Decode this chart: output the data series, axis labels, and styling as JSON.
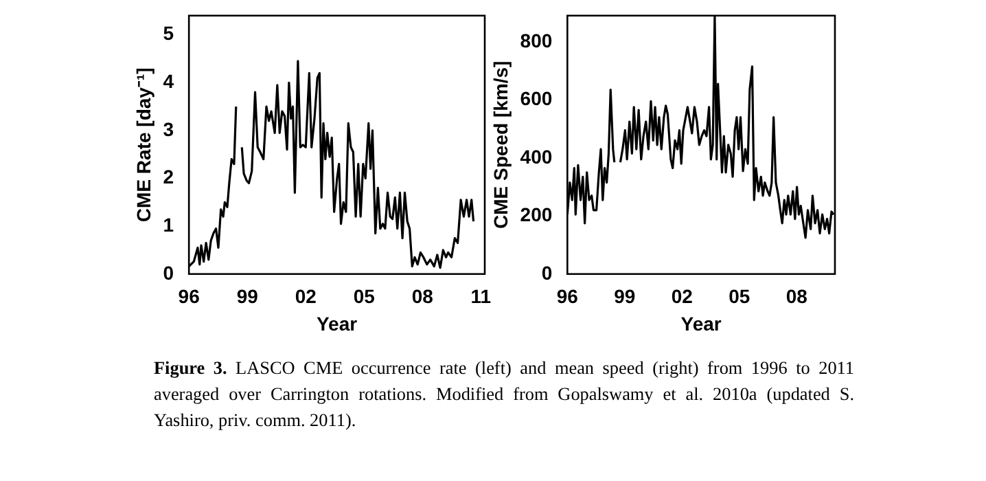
{
  "chart_data": [
    {
      "type": "line",
      "xlabel": "Year",
      "ylabel": "CME Rate [day⁻¹]",
      "grid": false,
      "legend": false,
      "marker": "none",
      "line_style": "solid",
      "xlim": [
        1996,
        2011.2
      ],
      "ylim": [
        0,
        5.4
      ],
      "xticks": [
        {
          "value": 1996,
          "label": "96"
        },
        {
          "value": 1999,
          "label": "99"
        },
        {
          "value": 2002,
          "label": "02"
        },
        {
          "value": 2005,
          "label": "05"
        },
        {
          "value": 2008,
          "label": "08"
        },
        {
          "value": 2011,
          "label": "11"
        }
      ],
      "yticks": [
        0,
        1,
        2,
        3,
        4,
        5
      ],
      "series": [
        {
          "color": "#000000",
          "x": [
            1996.0,
            1996.25,
            1996.45,
            1996.55,
            1996.63,
            1996.76,
            1996.88,
            1997.01,
            1997.13,
            1997.26,
            1997.39,
            1997.51,
            1997.64,
            1997.76,
            1997.84,
            1997.97,
            1998.07,
            1998.19,
            1998.32,
            1998.42,
            1998.5,
            1998.72,
            1998.82,
            1998.97,
            1999.08,
            1999.23,
            1999.4,
            1999.53,
            1999.66,
            1999.83,
            1999.98,
            2000.11,
            2000.23,
            2000.41,
            2000.54,
            2000.66,
            2000.79,
            2000.92,
            2001.04,
            2001.14,
            2001.24,
            2001.34,
            2001.44,
            2001.6,
            2001.72,
            2001.85,
            2002.0,
            2002.18,
            2002.3,
            2002.45,
            2002.6,
            2002.71,
            2002.81,
            2002.91,
            2003.01,
            2003.11,
            2003.23,
            2003.34,
            2003.46,
            2003.61,
            2003.71,
            2003.81,
            2003.94,
            2004.07,
            2004.19,
            2004.32,
            2004.44,
            2004.57,
            2004.7,
            2004.82,
            2004.95,
            2005.07,
            2005.23,
            2005.33,
            2005.43,
            2005.58,
            2005.71,
            2005.83,
            2005.96,
            2006.08,
            2006.21,
            2006.34,
            2006.46,
            2006.59,
            2006.71,
            2006.84,
            2006.97,
            2007.09,
            2007.22,
            2007.34,
            2007.47,
            2007.6,
            2007.75,
            2007.9,
            2008.05,
            2008.23,
            2008.4,
            2008.6,
            2008.76,
            2008.91,
            2009.06,
            2009.21,
            2009.32,
            2009.49,
            2009.66,
            2009.81,
            2009.97,
            2010.12,
            2010.27,
            2010.39,
            2010.52,
            2010.62
          ],
          "values": [
            0.16,
            0.26,
            0.55,
            0.2,
            0.6,
            0.26,
            0.65,
            0.3,
            0.7,
            0.85,
            0.95,
            0.55,
            1.35,
            1.2,
            1.5,
            1.4,
            1.9,
            2.4,
            2.3,
            3.5,
            null,
            2.65,
            2.1,
            1.95,
            1.9,
            2.15,
            3.8,
            2.65,
            2.55,
            2.4,
            3.5,
            3.2,
            3.4,
            2.95,
            3.95,
            2.95,
            3.4,
            3.3,
            2.6,
            4.0,
            3.25,
            3.5,
            1.7,
            4.45,
            2.65,
            2.7,
            2.65,
            4.2,
            2.65,
            3.25,
            4.1,
            4.2,
            1.6,
            3.15,
            2.4,
            2.95,
            2.45,
            2.85,
            1.3,
            2.0,
            2.3,
            1.05,
            1.5,
            1.3,
            3.15,
            2.65,
            2.55,
            1.2,
            2.3,
            1.2,
            2.3,
            2.0,
            3.15,
            2.2,
            3.0,
            0.85,
            1.8,
            0.95,
            1.05,
            0.95,
            1.7,
            1.2,
            1.15,
            1.6,
            0.95,
            1.7,
            0.75,
            1.7,
            1.1,
            0.95,
            0.16,
            0.35,
            0.2,
            0.45,
            0.35,
            0.2,
            0.3,
            0.16,
            0.4,
            0.13,
            0.5,
            0.35,
            0.45,
            0.35,
            0.75,
            0.65,
            1.55,
            1.2,
            1.55,
            1.2,
            1.55,
            1.1
          ]
        }
      ],
      "annotations": [
        "Figure 3. LASCO CME occurrence rate (left) and mean speed (right) from 1996 to 2011 averaged over Carrington rotations. Modified from Gopalswamy et al. 2010a (updated S. Yashiro, priv. comm. 2011)."
      ]
    },
    {
      "type": "line",
      "xlabel": "Year",
      "ylabel": "CME Speed [km/s]",
      "grid": false,
      "legend": false,
      "marker": "none",
      "line_style": "solid",
      "xlim": [
        1996,
        2010
      ],
      "ylim": [
        0,
        890
      ],
      "xticks": [
        {
          "value": 1996,
          "label": "96"
        },
        {
          "value": 1999,
          "label": "99"
        },
        {
          "value": 2002,
          "label": "02"
        },
        {
          "value": 2005,
          "label": "05"
        },
        {
          "value": 2008,
          "label": "08"
        }
      ],
      "yticks": [
        0,
        200,
        400,
        600,
        800
      ],
      "series": [
        {
          "color": "#000000",
          "x": [
            1996.0,
            1996.13,
            1996.25,
            1996.36,
            1996.43,
            1996.56,
            1996.69,
            1996.81,
            1996.91,
            1997.02,
            1997.14,
            1997.27,
            1997.37,
            1997.52,
            1997.65,
            1997.75,
            1997.85,
            1997.95,
            1998.06,
            1998.16,
            1998.26,
            1998.39,
            1998.46,
            1998.6,
            1998.77,
            1998.89,
            1999.02,
            1999.12,
            1999.25,
            1999.38,
            1999.48,
            1999.61,
            1999.73,
            1999.86,
            1999.98,
            2000.11,
            2000.24,
            2000.37,
            2000.49,
            2000.59,
            2000.7,
            2000.8,
            2000.92,
            2001.05,
            2001.15,
            2001.25,
            2001.41,
            2001.51,
            2001.63,
            2001.76,
            2001.86,
            2001.96,
            2002.06,
            2002.19,
            2002.29,
            2002.42,
            2002.52,
            2002.65,
            2002.78,
            2002.9,
            2003.03,
            2003.16,
            2003.28,
            2003.41,
            2003.51,
            2003.61,
            2003.71,
            2003.81,
            2003.88,
            2003.99,
            2004.09,
            2004.19,
            2004.29,
            2004.42,
            2004.55,
            2004.65,
            2004.76,
            2004.86,
            2004.96,
            2005.06,
            2005.19,
            2005.31,
            2005.44,
            2005.54,
            2005.67,
            2005.77,
            2005.87,
            2006.0,
            2006.13,
            2006.23,
            2006.33,
            2006.48,
            2006.58,
            2006.69,
            2006.79,
            2006.91,
            2007.04,
            2007.14,
            2007.24,
            2007.35,
            2007.45,
            2007.55,
            2007.68,
            2007.8,
            2007.91,
            2008.01,
            2008.11,
            2008.21,
            2008.31,
            2008.46,
            2008.58,
            2008.73,
            2008.83,
            2008.96,
            2009.09,
            2009.21,
            2009.34,
            2009.47,
            2009.59,
            2009.7,
            2009.82,
            2009.93
          ],
          "values": [
            205,
            315,
            255,
            365,
            205,
            375,
            255,
            335,
            175,
            350,
            255,
            270,
            220,
            220,
            350,
            430,
            255,
            365,
            315,
            415,
            635,
            430,
            385,
            null,
            385,
            430,
            495,
            395,
            525,
            415,
            575,
            430,
            565,
            395,
            475,
            525,
            430,
            595,
            460,
            575,
            445,
            540,
            430,
            540,
            580,
            550,
            395,
            365,
            460,
            430,
            495,
            380,
            495,
            540,
            575,
            525,
            485,
            575,
            525,
            445,
            475,
            495,
            475,
            575,
            395,
            445,
            890,
            395,
            655,
            495,
            350,
            475,
            350,
            445,
            415,
            335,
            495,
            540,
            430,
            540,
            355,
            430,
            380,
            635,
            715,
            255,
            365,
            285,
            335,
            270,
            315,
            285,
            270,
            315,
            540,
            315,
            270,
            220,
            175,
            255,
            205,
            270,
            205,
            285,
            190,
            300,
            205,
            235,
            190,
            125,
            220,
            155,
            270,
            175,
            220,
            140,
            205,
            155,
            190,
            140,
            215,
            205
          ]
        }
      ]
    }
  ]
}
